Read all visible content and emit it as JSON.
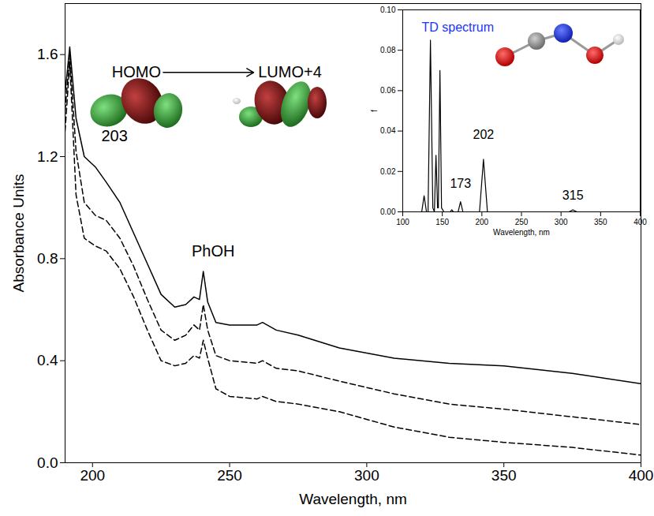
{
  "chart_data": [
    {
      "type": "line",
      "x_label": "Wavelength, nm",
      "y_label": "Absorbance Units",
      "x": [
        190,
        191.7,
        194,
        197,
        201,
        205,
        210,
        215,
        220,
        225,
        230,
        234,
        237,
        239,
        240.4,
        242,
        245,
        250,
        260,
        262,
        267,
        275,
        290,
        310,
        330,
        350,
        375,
        400
      ],
      "series": [
        {
          "color": "#000000",
          "line_style": "solid",
          "values": [
            1.45,
            1.63,
            1.35,
            1.2,
            1.16,
            1.1,
            1.02,
            0.9,
            0.78,
            0.66,
            0.61,
            0.62,
            0.65,
            0.64,
            0.75,
            0.63,
            0.55,
            0.54,
            0.54,
            0.55,
            0.52,
            0.5,
            0.45,
            0.41,
            0.39,
            0.38,
            0.35,
            0.31
          ]
        },
        {
          "color": "#000000",
          "line_style": "dashed",
          "values": [
            1.38,
            1.6,
            1.22,
            1.02,
            0.97,
            0.95,
            0.88,
            0.77,
            0.64,
            0.52,
            0.48,
            0.5,
            0.54,
            0.52,
            0.62,
            0.52,
            0.42,
            0.4,
            0.39,
            0.4,
            0.37,
            0.36,
            0.32,
            0.27,
            0.23,
            0.21,
            0.18,
            0.15
          ]
        },
        {
          "color": "#000000",
          "line_style": "dashed",
          "values": [
            1.3,
            1.57,
            1.05,
            0.88,
            0.85,
            0.83,
            0.76,
            0.65,
            0.52,
            0.4,
            0.38,
            0.39,
            0.42,
            0.41,
            0.48,
            0.41,
            0.29,
            0.26,
            0.25,
            0.26,
            0.24,
            0.23,
            0.2,
            0.14,
            0.1,
            0.08,
            0.06,
            0.03
          ]
        }
      ],
      "xlim": [
        190,
        400
      ],
      "xticks": [
        200,
        250,
        300,
        350,
        400
      ],
      "ylim": [
        0,
        1.8
      ],
      "yticks": [
        {
          "value": 0,
          "label": "0.0"
        },
        0.4,
        0.8,
        1.2,
        1.6
      ],
      "annotations": [
        {
          "text": "203",
          "x": 208,
          "y": 1.28
        },
        {
          "text": "PhOH",
          "x": 244,
          "y": 0.83
        },
        {
          "text": "HOMO",
          "x": 216,
          "y": 1.53
        },
        {
          "text": "LUMO+4",
          "x": 272,
          "y": 1.53
        }
      ]
    },
    {
      "type": "line",
      "title": "TD spectrum",
      "x_label": "Wavelength, nm",
      "y_label": "f",
      "x": [
        100,
        124,
        127,
        130,
        132,
        135,
        138,
        140,
        142,
        144,
        145,
        147,
        149,
        152,
        160,
        162,
        164,
        170,
        173,
        176,
        197,
        202,
        207,
        310,
        315,
        320,
        400
      ],
      "series": [
        {
          "color": "#000000",
          "line_style": "solid",
          "values": [
            0,
            0,
            0.008,
            0,
            0,
            0.085,
            0.002,
            0,
            0.028,
            0.002,
            0.002,
            0.07,
            0.002,
            0,
            0,
            0.001,
            0,
            0,
            0.005,
            0,
            0,
            0.026,
            0,
            0,
            0.001,
            0,
            0
          ]
        }
      ],
      "xlim": [
        100,
        400
      ],
      "xticks": [
        100,
        150,
        200,
        250,
        300,
        350,
        400
      ],
      "ylim": [
        0,
        0.1
      ],
      "yticks": [
        {
          "value": 0,
          "label": "0.00"
        },
        {
          "value": 0.02,
          "label": "0.02"
        },
        {
          "value": 0.04,
          "label": "0.04"
        },
        {
          "value": 0.06,
          "label": "0.06"
        },
        {
          "value": 0.08,
          "label": "0.08"
        },
        {
          "value": 0.1,
          "label": "0.10"
        }
      ],
      "annotations": [
        {
          "text": "173",
          "x": 173,
          "y": 0.012
        },
        {
          "text": "202",
          "x": 202,
          "y": 0.036
        },
        {
          "text": "315",
          "x": 315,
          "y": 0.006
        }
      ]
    }
  ]
}
